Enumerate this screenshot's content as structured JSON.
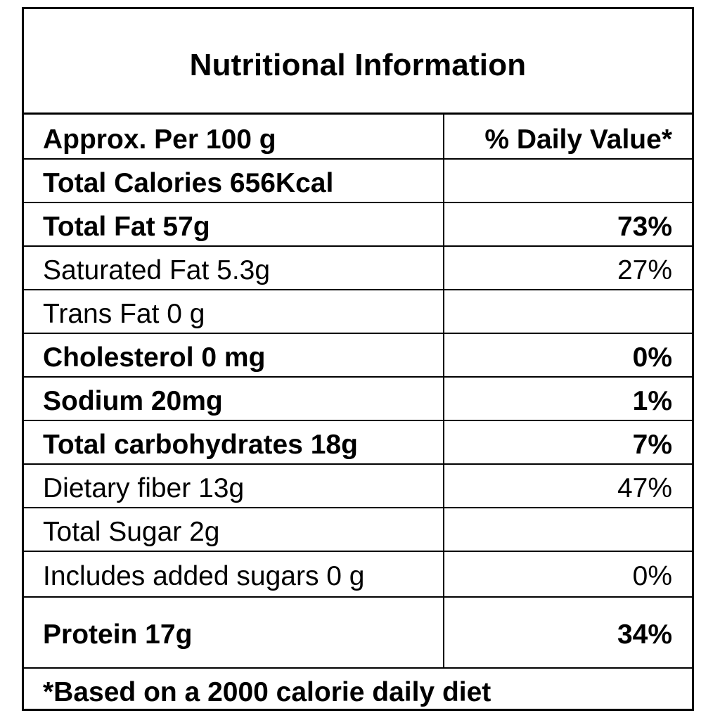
{
  "title": "Nutritional Information",
  "header": {
    "serving": "Approx. Per 100 g",
    "daily_value": "% Daily Value*"
  },
  "rows": [
    {
      "name": "Total Calories 656Kcal",
      "dv": "",
      "bold": true
    },
    {
      "name": "Total Fat 57g",
      "dv": "73%",
      "bold": true
    },
    {
      "name": "Saturated Fat 5.3g",
      "dv": "27%",
      "bold": false
    },
    {
      "name": "Trans Fat 0 g",
      "dv": "",
      "bold": false
    },
    {
      "name": "Cholesterol 0 mg",
      "dv": "0%",
      "bold": true
    },
    {
      "name": "Sodium 20mg",
      "dv": "1%",
      "bold": true
    },
    {
      "name": "Total carbohydrates 18g",
      "dv": "7%",
      "bold": true
    },
    {
      "name": "Dietary fiber 13g",
      "dv": "47%",
      "bold": false
    },
    {
      "name": "Total Sugar 2g",
      "dv": "",
      "bold": false
    },
    {
      "name": "Includes added sugars 0 g",
      "dv": "0%",
      "bold": false
    },
    {
      "name": "Protein 17g",
      "dv": "34%",
      "bold": true
    }
  ],
  "footnote": "*Based on a 2000 calorie daily diet"
}
